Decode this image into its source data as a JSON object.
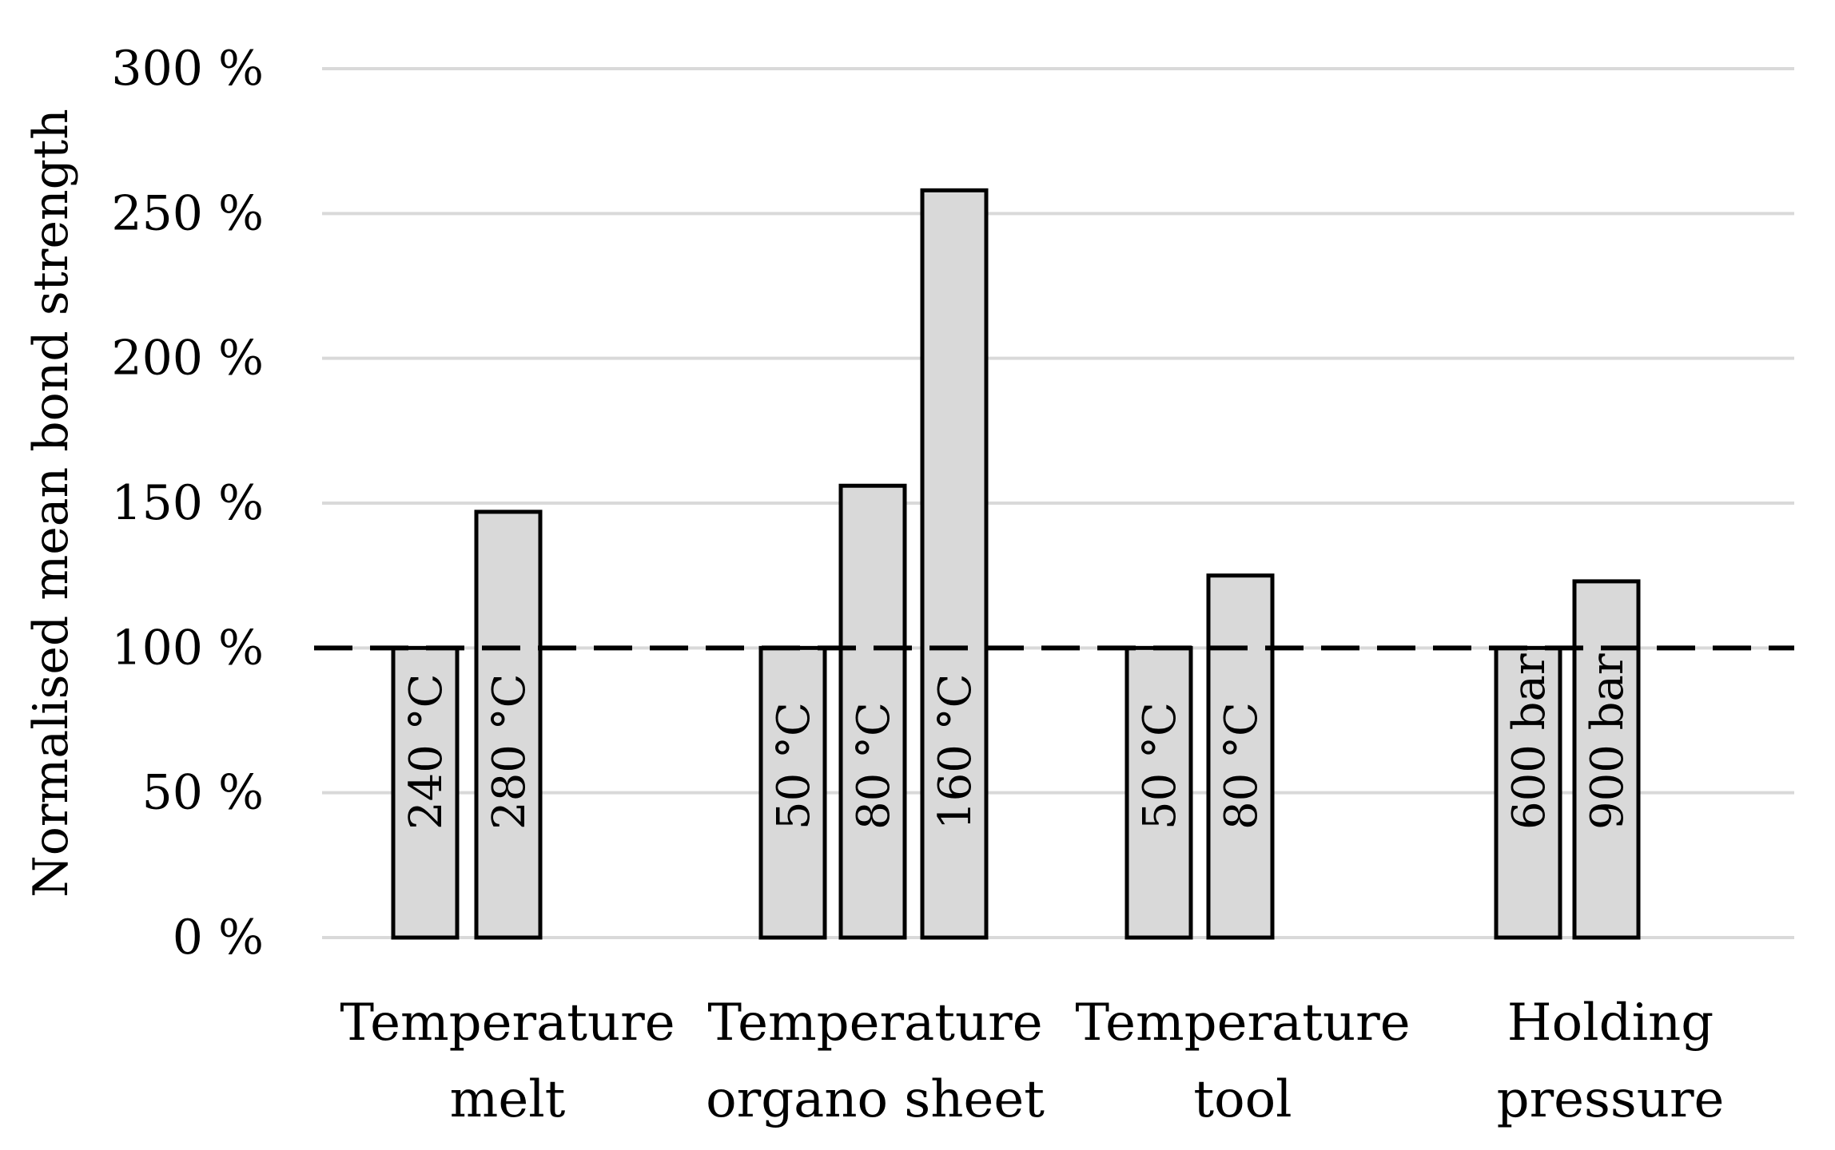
{
  "chart_data": {
    "type": "bar",
    "ylabel": "Normalised mean bond strength",
    "ylim": [
      0,
      300
    ],
    "yticks": [
      0,
      50,
      100,
      150,
      200,
      250,
      300
    ],
    "ytick_suffix": " %",
    "grid": true,
    "reference_line": 100,
    "groups": [
      {
        "label_lines": [
          "Temperature",
          "melt"
        ],
        "bars": [
          {
            "label": "240 °C",
            "value": 100
          },
          {
            "label": "280 °C",
            "value": 147
          }
        ]
      },
      {
        "label_lines": [
          "Temperature",
          "organo sheet"
        ],
        "bars": [
          {
            "label": "50 °C",
            "value": 100
          },
          {
            "label": "80 °C",
            "value": 156
          },
          {
            "label": "160 °C",
            "value": 258
          }
        ]
      },
      {
        "label_lines": [
          "Temperature",
          "tool"
        ],
        "bars": [
          {
            "label": "50 °C",
            "value": 100
          },
          {
            "label": "80 °C",
            "value": 125
          }
        ]
      },
      {
        "label_lines": [
          "Holding",
          "pressure"
        ],
        "bars": [
          {
            "label": "600 bar",
            "value": 100
          },
          {
            "label": "900 bar",
            "value": 123
          }
        ]
      }
    ]
  }
}
